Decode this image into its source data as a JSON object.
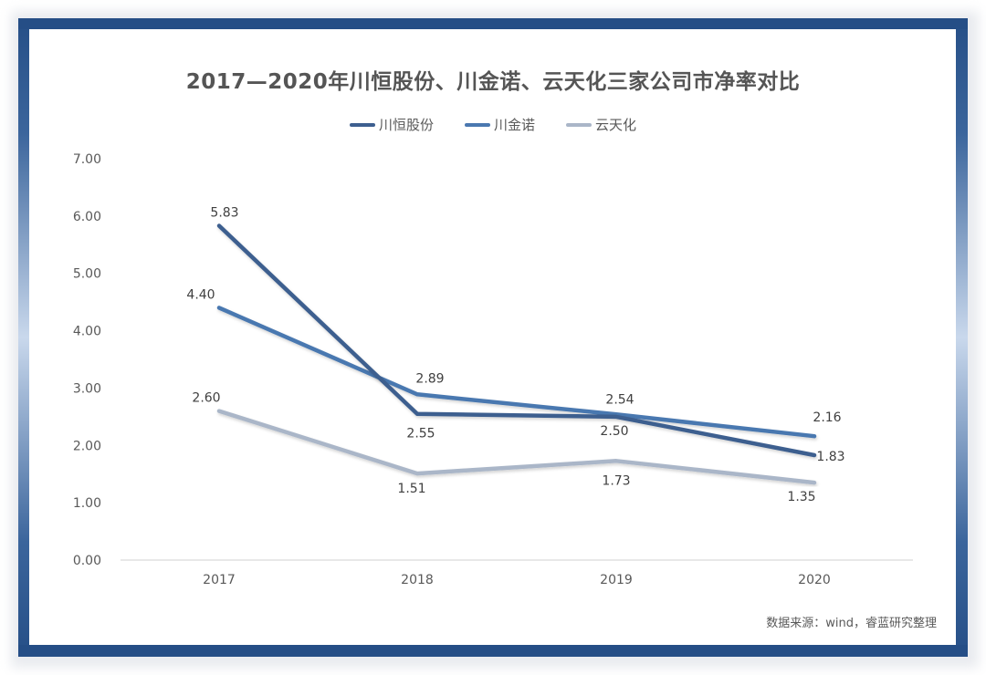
{
  "chart_data": {
    "type": "line",
    "title": "2017—2020年川恒股份、川金诺、云天化三家公司市净率对比",
    "categories": [
      "2017",
      "2018",
      "2019",
      "2020"
    ],
    "series": [
      {
        "name": "川恒股份",
        "values": [
          5.83,
          2.55,
          2.5,
          1.83
        ],
        "color": "#3d5f8f"
      },
      {
        "name": "川金诺",
        "values": [
          4.4,
          2.89,
          2.54,
          2.16
        ],
        "color": "#4a78b0"
      },
      {
        "name": "云天化",
        "values": [
          2.6,
          1.51,
          1.73,
          1.35
        ],
        "color": "#aab6c8"
      }
    ],
    "xlabel": "",
    "ylabel": "",
    "ylim": [
      0,
      7
    ],
    "yticks": [
      "0.00",
      "1.00",
      "2.00",
      "3.00",
      "4.00",
      "5.00",
      "6.00",
      "7.00"
    ],
    "grid": false,
    "legend_position": "top",
    "source_note": "数据来源：wind，睿蓝研究整理"
  }
}
